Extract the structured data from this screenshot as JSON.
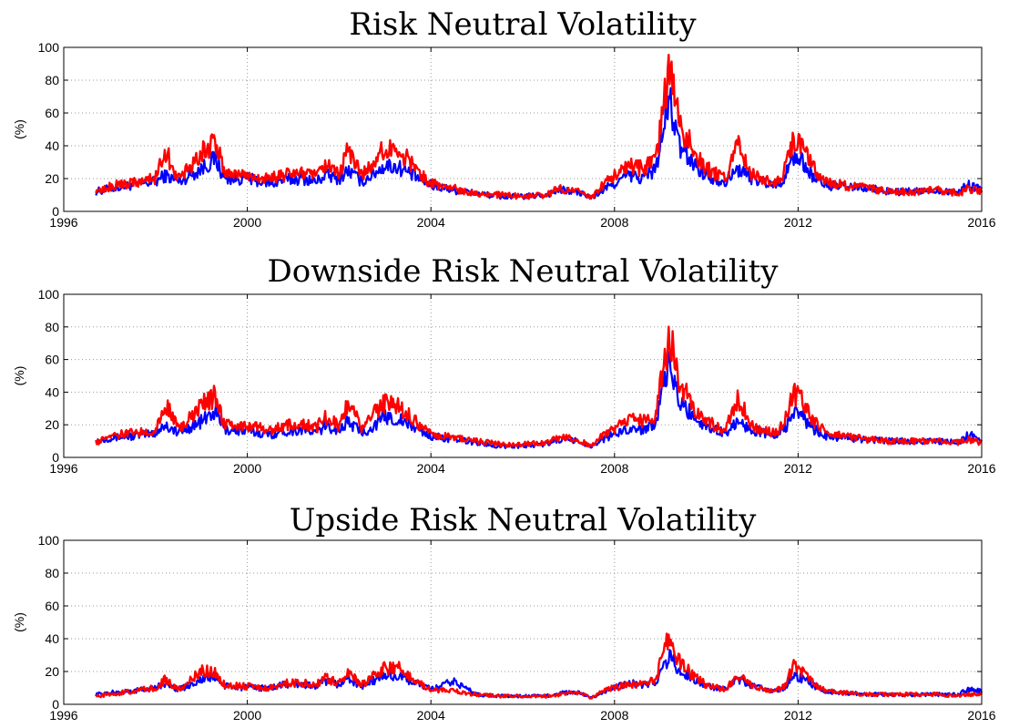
{
  "chart_data": [
    {
      "type": "line",
      "title": "Risk Neutral Volatility",
      "ylabel": "(%)",
      "xlim": [
        1996,
        2016
      ],
      "ylim": [
        0,
        100
      ],
      "xticks": [
        "1996",
        "2000",
        "2004",
        "2008",
        "2012",
        "2016"
      ],
      "yticks": [
        "0",
        "20",
        "40",
        "60",
        "80",
        "100"
      ],
      "grid": true,
      "colors": [
        "#0000ff",
        "#ff0000"
      ],
      "x": [
        1996.7,
        1997.0,
        1997.5,
        1998.0,
        1998.2,
        1998.5,
        1999.0,
        1999.3,
        1999.5,
        2000.0,
        2000.5,
        2000.8,
        2001.2,
        2001.5,
        2001.7,
        2002.0,
        2002.2,
        2002.5,
        2002.8,
        2003.0,
        2003.3,
        2003.6,
        2004.0,
        2004.5,
        2005.0,
        2005.5,
        2006.0,
        2006.5,
        2006.8,
        2007.2,
        2007.5,
        2007.8,
        2008.0,
        2008.3,
        2008.6,
        2008.9,
        2009.1,
        2009.2,
        2009.4,
        2009.7,
        2010.0,
        2010.4,
        2010.7,
        2011.0,
        2011.5,
        2011.7,
        2011.9,
        2012.1,
        2012.3,
        2012.6,
        2013.0,
        2013.5,
        2014.0,
        2014.5,
        2015.0,
        2015.5,
        2015.7,
        2016.0
      ],
      "series": [
        {
          "values": [
            12,
            14,
            16,
            18,
            22,
            18,
            26,
            32,
            20,
            20,
            17,
            19,
            20,
            18,
            22,
            20,
            25,
            18,
            24,
            28,
            27,
            22,
            16,
            13,
            11,
            9,
            9,
            10,
            13,
            12,
            8,
            14,
            17,
            22,
            20,
            26,
            55,
            68,
            40,
            30,
            22,
            18,
            26,
            20,
            16,
            20,
            34,
            30,
            22,
            16,
            15,
            14,
            12,
            12,
            13,
            12,
            16,
            14
          ]
        },
        {
          "values": [
            11,
            15,
            18,
            20,
            38,
            20,
            36,
            42,
            24,
            22,
            20,
            22,
            24,
            21,
            28,
            22,
            38,
            22,
            32,
            38,
            38,
            28,
            17,
            14,
            11,
            10,
            9,
            10,
            14,
            12,
            8,
            18,
            22,
            28,
            26,
            30,
            70,
            86,
            55,
            38,
            26,
            20,
            40,
            22,
            18,
            24,
            46,
            38,
            28,
            18,
            16,
            14,
            12,
            12,
            13,
            11,
            14,
            12
          ]
        }
      ]
    },
    {
      "type": "line",
      "title": "Downside Risk Neutral Volatility",
      "ylabel": "(%)",
      "xlim": [
        1996,
        2016
      ],
      "ylim": [
        0,
        100
      ],
      "xticks": [
        "1996",
        "2000",
        "2004",
        "2008",
        "2012",
        "2016"
      ],
      "yticks": [
        "0",
        "20",
        "40",
        "60",
        "80",
        "100"
      ],
      "grid": true,
      "colors": [
        "#0000ff",
        "#ff0000"
      ],
      "x": [
        1996.7,
        1997.0,
        1997.5,
        1998.0,
        1998.2,
        1998.5,
        1999.0,
        1999.3,
        1999.5,
        2000.0,
        2000.5,
        2000.8,
        2001.2,
        2001.5,
        2001.7,
        2002.0,
        2002.2,
        2002.5,
        2002.8,
        2003.0,
        2003.3,
        2003.6,
        2004.0,
        2004.5,
        2005.0,
        2005.5,
        2006.0,
        2006.5,
        2006.8,
        2007.2,
        2007.5,
        2007.8,
        2008.0,
        2008.3,
        2008.6,
        2008.9,
        2009.1,
        2009.2,
        2009.4,
        2009.7,
        2010.0,
        2010.4,
        2010.7,
        2011.0,
        2011.5,
        2011.7,
        2011.9,
        2012.1,
        2012.3,
        2012.6,
        2013.0,
        2013.5,
        2014.0,
        2014.5,
        2015.0,
        2015.5,
        2015.7,
        2016.0
      ],
      "series": [
        {
          "values": [
            10,
            12,
            13,
            15,
            20,
            15,
            22,
            28,
            17,
            16,
            14,
            16,
            17,
            15,
            19,
            17,
            22,
            15,
            20,
            25,
            23,
            19,
            13,
            11,
            9,
            7,
            7,
            8,
            11,
            10,
            7,
            12,
            14,
            18,
            17,
            22,
            45,
            58,
            34,
            26,
            19,
            15,
            22,
            17,
            13,
            17,
            28,
            25,
            18,
            13,
            12,
            11,
            10,
            10,
            10,
            9,
            14,
            11
          ]
        },
        {
          "values": [
            9,
            13,
            15,
            17,
            34,
            17,
            32,
            38,
            20,
            19,
            17,
            19,
            21,
            18,
            25,
            19,
            34,
            18,
            28,
            33,
            32,
            24,
            14,
            12,
            10,
            8,
            8,
            9,
            12,
            11,
            7,
            15,
            18,
            23,
            22,
            26,
            60,
            76,
            46,
            32,
            22,
            17,
            36,
            19,
            15,
            21,
            40,
            34,
            24,
            15,
            13,
            11,
            10,
            10,
            10,
            9,
            11,
            9
          ]
        }
      ]
    },
    {
      "type": "line",
      "title": "Upside Risk Neutral Volatility",
      "ylabel": "(%)",
      "xlim": [
        1996,
        2016
      ],
      "ylim": [
        0,
        100
      ],
      "xticks": [
        "1996",
        "2000",
        "2004",
        "2008",
        "2012",
        "2016"
      ],
      "yticks": [
        "0",
        "20",
        "40",
        "60",
        "80",
        "100"
      ],
      "grid": true,
      "colors": [
        "#0000ff",
        "#ff0000"
      ],
      "x": [
        1996.7,
        1997.0,
        1997.5,
        1998.0,
        1998.2,
        1998.5,
        1999.0,
        1999.3,
        1999.5,
        2000.0,
        2000.5,
        2000.8,
        2001.2,
        2001.5,
        2001.7,
        2002.0,
        2002.2,
        2002.5,
        2002.8,
        2003.0,
        2003.3,
        2003.6,
        2004.0,
        2004.5,
        2005.0,
        2005.5,
        2006.0,
        2006.5,
        2006.8,
        2007.2,
        2007.5,
        2007.8,
        2008.0,
        2008.3,
        2008.6,
        2008.9,
        2009.1,
        2009.2,
        2009.4,
        2009.7,
        2010.0,
        2010.4,
        2010.7,
        2011.0,
        2011.5,
        2011.7,
        2011.9,
        2012.1,
        2012.3,
        2012.6,
        2013.0,
        2013.5,
        2014.0,
        2014.5,
        2015.0,
        2015.5,
        2015.7,
        2016.0
      ],
      "series": [
        {
          "values": [
            6,
            7,
            8,
            10,
            13,
            9,
            15,
            17,
            11,
            10,
            10,
            12,
            12,
            11,
            14,
            12,
            16,
            11,
            15,
            18,
            17,
            14,
            9,
            14,
            6,
            5,
            5,
            5,
            7,
            7,
            4,
            8,
            10,
            13,
            12,
            14,
            25,
            30,
            20,
            16,
            11,
            9,
            15,
            11,
            8,
            10,
            18,
            16,
            12,
            8,
            7,
            6,
            6,
            6,
            6,
            6,
            9,
            8
          ]
        },
        {
          "values": [
            5,
            6,
            8,
            10,
            15,
            9,
            20,
            20,
            12,
            11,
            10,
            13,
            13,
            12,
            16,
            13,
            20,
            12,
            18,
            23,
            22,
            16,
            9,
            8,
            6,
            5,
            5,
            5,
            6,
            7,
            4,
            9,
            10,
            12,
            12,
            15,
            35,
            42,
            26,
            18,
            12,
            9,
            18,
            11,
            8,
            11,
            23,
            20,
            14,
            8,
            7,
            6,
            6,
            6,
            6,
            5,
            6,
            6
          ]
        }
      ]
    }
  ]
}
